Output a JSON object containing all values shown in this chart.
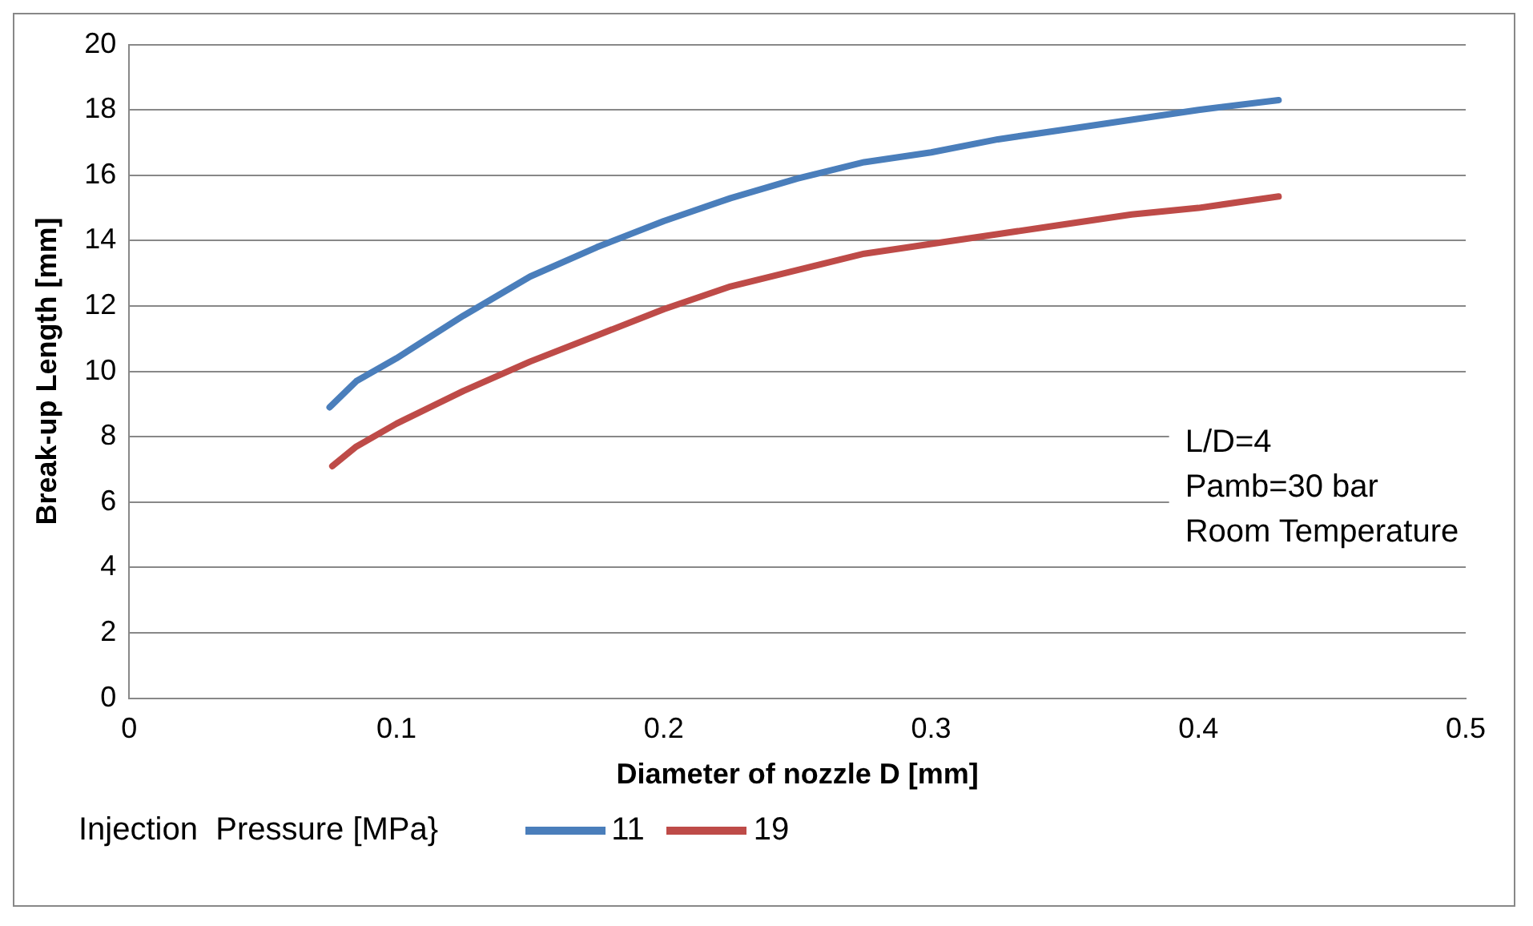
{
  "chart_data": {
    "type": "line",
    "xlabel": "Diameter of nozzle D [mm]",
    "ylabel": "Break-up Length [mm]",
    "legend_title": "Injection  Pressure [MPa}",
    "legend": "bottom",
    "grid": "y",
    "marker": "none",
    "line_style": "solid",
    "xlim": [
      0,
      0.5
    ],
    "xticks": [
      0,
      0.1,
      0.2,
      0.3,
      0.4,
      0.5
    ],
    "ylim": [
      0,
      20
    ],
    "yticks": [
      0,
      2,
      4,
      6,
      8,
      10,
      12,
      14,
      16,
      18,
      20
    ],
    "annotations": [
      "L/D=4",
      "Pamb=30 bar",
      "Room Temperature"
    ],
    "series": [
      {
        "name": "11",
        "color": "#4a7ebb",
        "x": [
          0.075,
          0.085,
          0.1,
          0.125,
          0.15,
          0.175,
          0.2,
          0.225,
          0.25,
          0.275,
          0.3,
          0.325,
          0.35,
          0.375,
          0.4,
          0.43
        ],
        "values": [
          8.9,
          9.7,
          10.4,
          11.7,
          12.9,
          13.8,
          14.6,
          15.3,
          15.9,
          16.4,
          16.7,
          17.1,
          17.4,
          17.7,
          18.0,
          18.3
        ]
      },
      {
        "name": "19",
        "color": "#be4b48",
        "x": [
          0.076,
          0.085,
          0.1,
          0.125,
          0.15,
          0.175,
          0.2,
          0.225,
          0.25,
          0.275,
          0.3,
          0.325,
          0.35,
          0.375,
          0.4,
          0.43
        ],
        "values": [
          7.1,
          7.7,
          8.4,
          9.4,
          10.3,
          11.1,
          11.9,
          12.6,
          13.1,
          13.6,
          13.9,
          14.2,
          14.5,
          14.8,
          15.0,
          15.35
        ]
      }
    ]
  }
}
